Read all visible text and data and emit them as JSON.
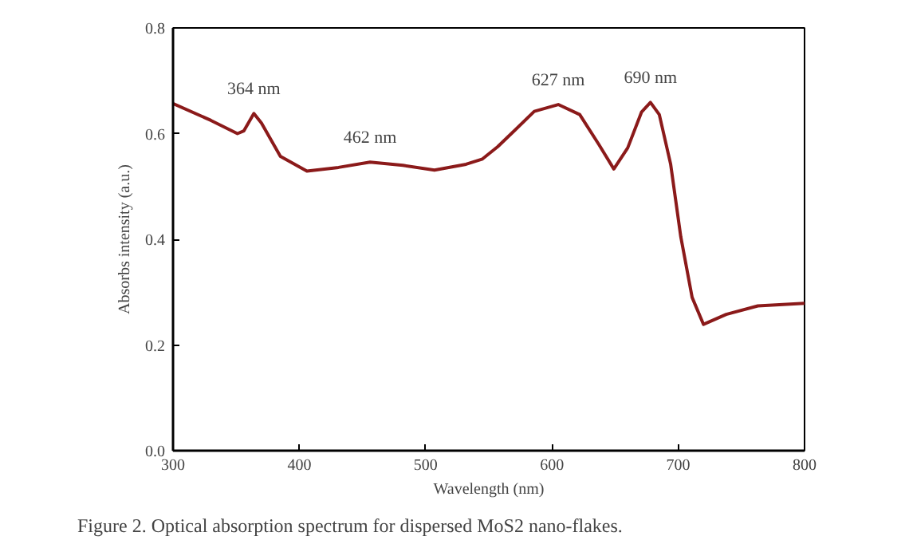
{
  "chart_data": {
    "type": "line",
    "xlabel": "Wavelength (nm)",
    "ylabel": "Absorbs intensity (a.u.)",
    "x": [
      300,
      330,
      351,
      356,
      364,
      370,
      385,
      406,
      431,
      456,
      482,
      507,
      532,
      545,
      557,
      570,
      586,
      605,
      622,
      637,
      649,
      660,
      671,
      678,
      685,
      694,
      702,
      711,
      720,
      738,
      763,
      800
    ],
    "series": [
      {
        "color": "#8b1a1a",
        "values": [
          0.657,
          0.625,
          0.6,
          0.605,
          0.638,
          0.62,
          0.557,
          0.529,
          0.536,
          0.546,
          0.54,
          0.531,
          0.542,
          0.552,
          0.575,
          0.605,
          0.642,
          0.655,
          0.636,
          0.58,
          0.533,
          0.573,
          0.641,
          0.659,
          0.636,
          0.542,
          0.405,
          0.29,
          0.239,
          0.258,
          0.274,
          0.279
        ]
      }
    ],
    "xlim": [
      300,
      800
    ],
    "ylim": [
      0,
      0.8
    ],
    "xticks": [
      300,
      400,
      500,
      600,
      700,
      800
    ],
    "yticks": [
      {
        "value": 0,
        "label": "0.0"
      },
      0.2,
      0.4,
      0.6,
      0.8
    ],
    "grid": false,
    "marker": "none",
    "line_style": "solid",
    "annotations": [
      {
        "text": "364 nm",
        "x": 364,
        "y": 0.638
      },
      {
        "text": "462 nm",
        "x": 456,
        "y": 0.546
      },
      {
        "text": "627 nm",
        "x": 605,
        "y": 0.655
      },
      {
        "text": "690 nm",
        "x": 678,
        "y": 0.659
      },
      "Figure 2. Optical absorption spectrum for dispersed MoS2 nano-flakes."
    ]
  }
}
